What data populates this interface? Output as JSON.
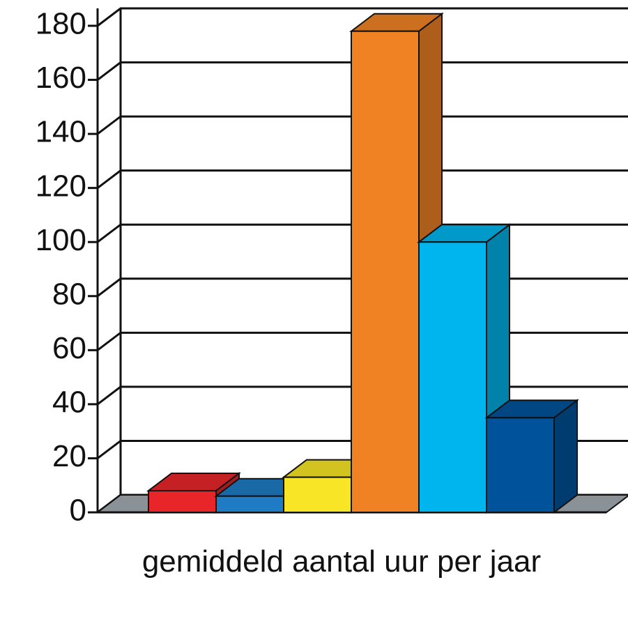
{
  "chart_data": {
    "type": "bar3d",
    "categories": [
      "gemiddeld aantal uur per jaar"
    ],
    "series": [
      {
        "color": "#e8262a",
        "values": [
          8
        ]
      },
      {
        "color": "#1f7cc4",
        "values": [
          6
        ]
      },
      {
        "color": "#f7e526",
        "values": [
          13
        ]
      },
      {
        "color": "#f08224",
        "values": [
          178
        ]
      },
      {
        "color": "#00b5ee",
        "values": [
          100
        ]
      },
      {
        "color": "#00539a",
        "values": [
          35
        ]
      }
    ],
    "ylim": [
      0,
      180
    ],
    "yticks": [
      0,
      20,
      40,
      60,
      80,
      100,
      120,
      140,
      160,
      180
    ],
    "grid": true
  }
}
